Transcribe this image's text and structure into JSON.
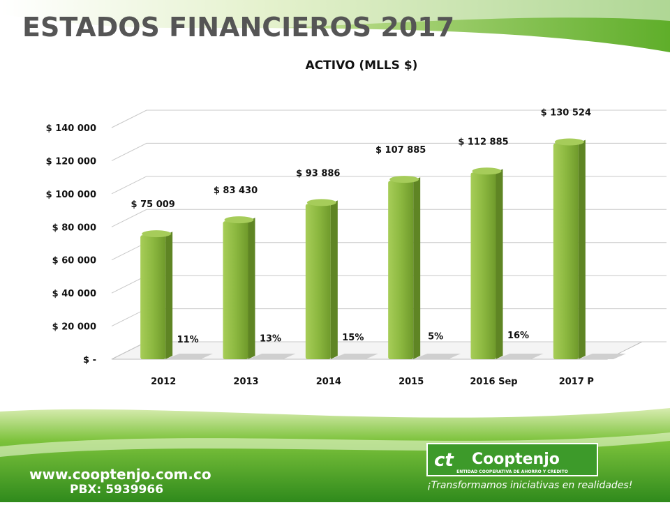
{
  "slide_title": "ESTADOS FINANCIEROS 2017",
  "chart_data": {
    "type": "bar",
    "title": "ACTIVO (MLLS $)",
    "categories": [
      "2012",
      "2013",
      "2014",
      "2015",
      "2016 Sep",
      "2017 P"
    ],
    "values": [
      75009,
      83430,
      93886,
      107885,
      112885,
      130524
    ],
    "value_labels": [
      "$ 75 009",
      "$ 83 430",
      "$ 93 886",
      "$ 107 885",
      "$ 112 885",
      "$ 130 524"
    ],
    "color": "#8cb840",
    "ylim": [
      0,
      140000
    ],
    "yticks": [
      {
        "value": 0,
        "label": "$ -"
      },
      {
        "value": 20000,
        "label": "$ 20 000"
      },
      {
        "value": 40000,
        "label": "$ 40 000"
      },
      {
        "value": 60000,
        "label": "$ 60 000"
      },
      {
        "value": 80000,
        "label": "$ 80 000"
      },
      {
        "value": 100000,
        "label": "$ 100 000"
      },
      {
        "value": 120000,
        "label": "$ 120 000"
      },
      {
        "value": 140000,
        "label": "$ 140 000"
      }
    ],
    "grid": true,
    "annotations": [
      "11%",
      "13%",
      "15%",
      "5%",
      "16%"
    ]
  },
  "footer": {
    "website": "www.cooptenjo.com.co",
    "phone": "PBX: 5939966"
  },
  "logo": {
    "name": "Cooptenjo",
    "tagline": "ENTIDAD COOPERATIVA DE AHORRO Y CREDITO",
    "slogan": "¡Transformamos iniciativas en realidades!"
  }
}
